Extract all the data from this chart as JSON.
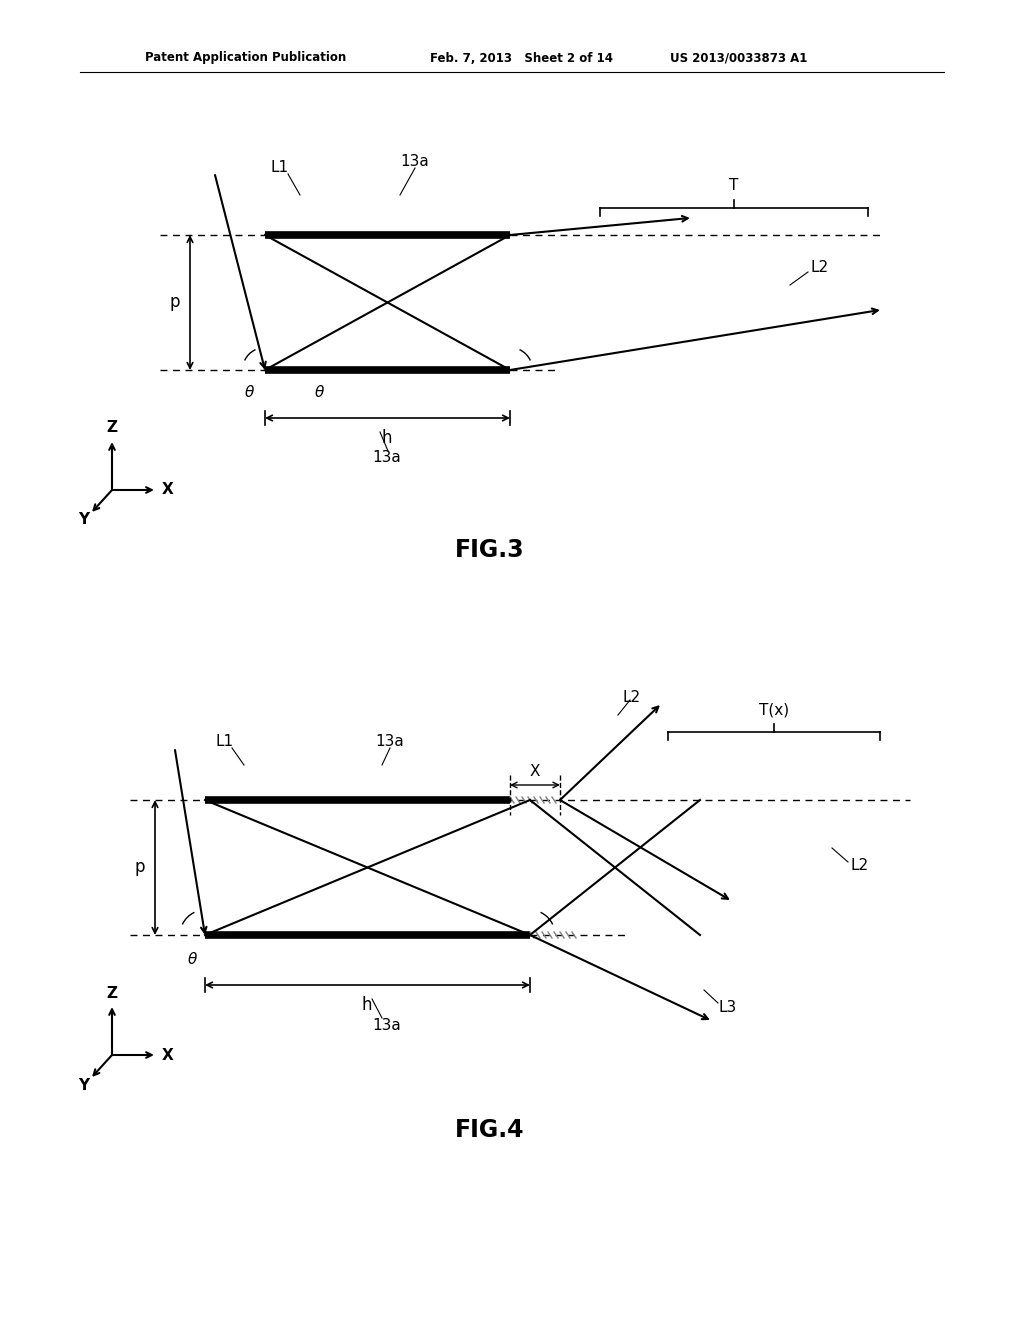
{
  "bg_color": "#ffffff",
  "header_left": "Patent Application Publication",
  "header_mid": "Feb. 7, 2013   Sheet 2 of 14",
  "header_right": "US 2013/0033873 A1",
  "fig3_label": "FIG.3",
  "fig4_label": "FIG.4",
  "fig_width": 10.24,
  "fig_height": 13.2
}
